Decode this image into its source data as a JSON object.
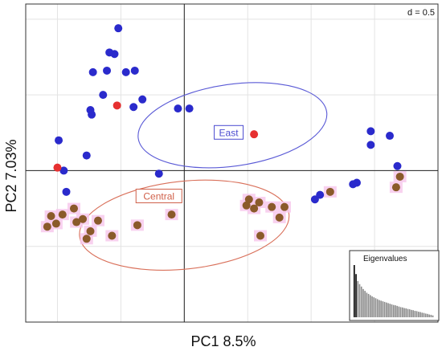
{
  "chart_data": {
    "type": "scatter",
    "xlabel": "PC1 8.5%",
    "ylabel": "PC2 7.03%",
    "grid_scale_label": "d = 0.5",
    "xlim": [
      -1.25,
      2.0
    ],
    "ylim": [
      -1.0,
      1.1
    ],
    "grid": true,
    "groups": [
      {
        "name": "East",
        "color": "#2a2acc",
        "ellipse": {
          "cx": 0.38,
          "cy": 0.3,
          "rx": 0.75,
          "ry": 0.27,
          "angle_deg": -8
        },
        "label_at": [
          0.35,
          0.25
        ],
        "points": [
          [
            -0.52,
            0.94
          ],
          [
            -0.59,
            0.78
          ],
          [
            -0.55,
            0.77
          ],
          [
            -0.61,
            0.66
          ],
          [
            -0.72,
            0.65
          ],
          [
            -0.46,
            0.65
          ],
          [
            -0.39,
            0.66
          ],
          [
            -0.64,
            0.5
          ],
          [
            -0.33,
            0.47
          ],
          [
            -0.4,
            0.42
          ],
          [
            -0.74,
            0.4
          ],
          [
            -0.73,
            0.37
          ],
          [
            -0.05,
            0.41
          ],
          [
            0.04,
            0.41
          ],
          [
            -0.99,
            0.2
          ],
          [
            -0.77,
            0.1
          ],
          [
            -0.95,
            0.0
          ],
          [
            -0.2,
            -0.02
          ],
          [
            1.47,
            0.26
          ],
          [
            1.47,
            0.17
          ],
          [
            1.62,
            0.23
          ],
          [
            1.68,
            0.03
          ],
          [
            1.33,
            -0.09
          ],
          [
            1.36,
            -0.08
          ],
          [
            -0.93,
            -0.14
          ],
          [
            1.07,
            -0.16
          ],
          [
            1.03,
            -0.19
          ]
        ]
      },
      {
        "name": "Central",
        "color": "#8a5a2a",
        "ellipse": {
          "cx": 0.0,
          "cy": -0.36,
          "rx": 0.83,
          "ry": 0.29,
          "angle_deg": -6
        },
        "label_at": [
          -0.2,
          -0.17
        ],
        "points": [
          [
            1.7,
            -0.04
          ],
          [
            1.67,
            -0.11
          ],
          [
            1.15,
            -0.14
          ],
          [
            0.51,
            -0.19
          ],
          [
            0.59,
            -0.21
          ],
          [
            0.69,
            -0.24
          ],
          [
            0.49,
            -0.23
          ],
          [
            0.55,
            -0.25
          ],
          [
            0.79,
            -0.24
          ],
          [
            -0.87,
            -0.25
          ],
          [
            -0.8,
            -0.32
          ],
          [
            -0.1,
            -0.29
          ],
          [
            -0.96,
            -0.29
          ],
          [
            -0.85,
            -0.34
          ],
          [
            -0.68,
            -0.33
          ],
          [
            0.75,
            -0.31
          ],
          [
            -0.74,
            -0.4
          ],
          [
            -0.57,
            -0.43
          ],
          [
            0.6,
            -0.43
          ],
          [
            -1.05,
            -0.3
          ],
          [
            -1.01,
            -0.35
          ],
          [
            -0.77,
            -0.45
          ],
          [
            -1.08,
            -0.37
          ],
          [
            -0.37,
            -0.36
          ]
        ]
      },
      {
        "name": "",
        "color": "#e63030",
        "points": [
          [
            -0.53,
            0.43
          ],
          [
            0.55,
            0.24
          ],
          [
            -1.0,
            0.02
          ]
        ]
      }
    ],
    "inset": {
      "title": "Eigenvalues",
      "values": [
        8.5,
        7.03,
        5.9,
        5.4,
        5.0,
        4.6,
        4.3,
        4.0,
        3.8,
        3.6,
        3.4,
        3.25,
        3.1,
        2.95,
        2.8,
        2.7,
        2.6,
        2.5,
        2.4,
        2.3,
        2.2,
        2.1,
        2.0,
        1.95,
        1.85,
        1.75,
        1.65,
        1.6,
        1.5,
        1.45,
        1.35,
        1.3,
        1.2,
        1.15,
        1.05,
        1.0,
        0.9,
        0.85,
        0.75,
        0.7,
        0.6,
        0.55,
        0.45,
        0.4,
        0.3
      ],
      "highlight_count": 2
    }
  }
}
